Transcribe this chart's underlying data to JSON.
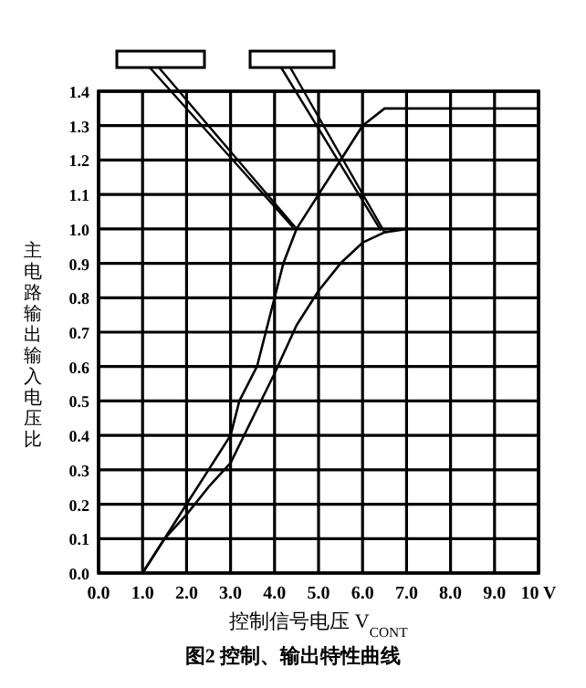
{
  "chart_data": {
    "type": "line",
    "title": "图2  控制、输出特性曲线",
    "xlabel": "控制信号电压 V$_{CONT}$",
    "ylabel": "主电路输出输入电压比",
    "xlim": [
      0,
      10
    ],
    "ylim": [
      0,
      1.4
    ],
    "xticks": [
      {
        "value": 0,
        "label": "0.0"
      },
      {
        "value": 1,
        "label": "1.0"
      },
      {
        "value": 2,
        "label": "2.0"
      },
      {
        "value": 3,
        "label": "3.0"
      },
      {
        "value": 4,
        "label": "4.0"
      },
      {
        "value": 5,
        "label": "5.0"
      },
      {
        "value": 6,
        "label": "6.0"
      },
      {
        "value": 7,
        "label": "7.0"
      },
      {
        "value": 8,
        "label": "8.0"
      },
      {
        "value": 9,
        "label": "9.0"
      },
      {
        "value": 10,
        "label": "10 V"
      }
    ],
    "yticks": [
      {
        "value": 0,
        "label": "0.0"
      },
      0.1,
      0.2,
      0.3,
      0.4,
      0.5,
      0.6,
      0.7,
      0.8,
      0.9,
      {
        "value": 1,
        "label": "1.0"
      },
      1.1,
      1.2,
      1.3,
      1.4
    ],
    "grid": true,
    "marker": "none",
    "line_style": "solid",
    "series": [
      {
        "color": "#000000",
        "x": [
          1.0,
          1.5,
          2.0,
          2.5,
          3.0,
          3.2,
          3.6,
          3.8,
          4.0,
          4.2,
          4.5,
          5.0,
          5.5,
          6.0,
          6.5,
          10
        ],
        "values": [
          0,
          0.1,
          0.2,
          0.3,
          0.4,
          0.5,
          0.6,
          0.7,
          0.8,
          0.9,
          1.0,
          1.1,
          1.2,
          1.3,
          1.35,
          1.35
        ]
      },
      {
        "color": "#000000",
        "x": [
          1.0,
          1.5,
          2.0,
          2.5,
          3.0,
          3.5,
          4.0,
          4.5,
          5.0,
          5.5,
          6.0,
          6.5,
          7.0
        ],
        "values": [
          0,
          0.1,
          0.17,
          0.25,
          0.32,
          0.45,
          0.58,
          0.72,
          0.82,
          0.9,
          0.96,
          0.99,
          1.0
        ]
      }
    ]
  }
}
